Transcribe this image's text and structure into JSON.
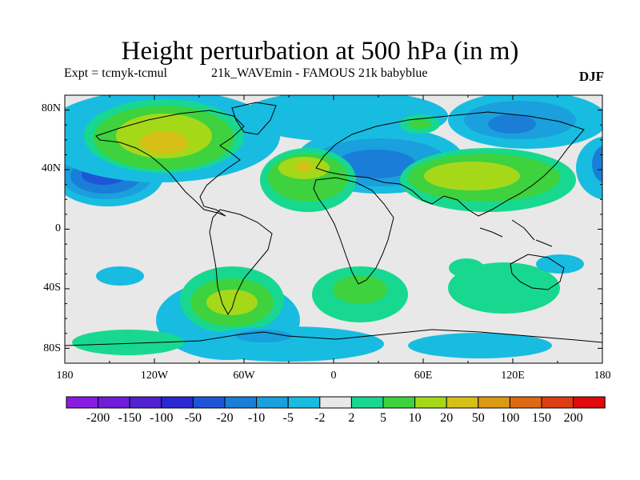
{
  "title": "Height perturbation at 500 hPa (in m)",
  "experiment_label": "Expt = tcmyk-tcmul",
  "run_label": "21k_WAVEmin - FAMOUS 21k babyblue",
  "season": "DJF",
  "lat_labels": [
    "80N",
    "40N",
    "0",
    "40S",
    "80S"
  ],
  "lon_labels": [
    "180",
    "120W",
    "60W",
    "0",
    "60E",
    "120E",
    "180"
  ],
  "colorbar": {
    "labels": [
      "-200",
      "-150",
      "-100",
      "-50",
      "-20",
      "-10",
      "-5",
      "-2",
      "2",
      "5",
      "10",
      "20",
      "50",
      "100",
      "150",
      "200"
    ],
    "colors": [
      "#8a1be0",
      "#6e1ed8",
      "#5222d0",
      "#2a2ad0",
      "#1e55d6",
      "#1a7ed8",
      "#1aa0dc",
      "#18bce0",
      "#e8e8e8",
      "#18d890",
      "#3ed23e",
      "#a6d81a",
      "#d6c018",
      "#dc9a14",
      "#dc6a12",
      "#dc3e14",
      "#e00a0a"
    ]
  },
  "colors": {
    "background": "#e8e8e8",
    "neg2": "#18bce0",
    "neg5": "#1aa0dc",
    "neg10": "#1a7ed8",
    "neg20": "#1e55d6",
    "pos2": "#18d890",
    "pos5": "#3ed23e",
    "pos10": "#a6d81a",
    "pos20": "#d6c018"
  }
}
